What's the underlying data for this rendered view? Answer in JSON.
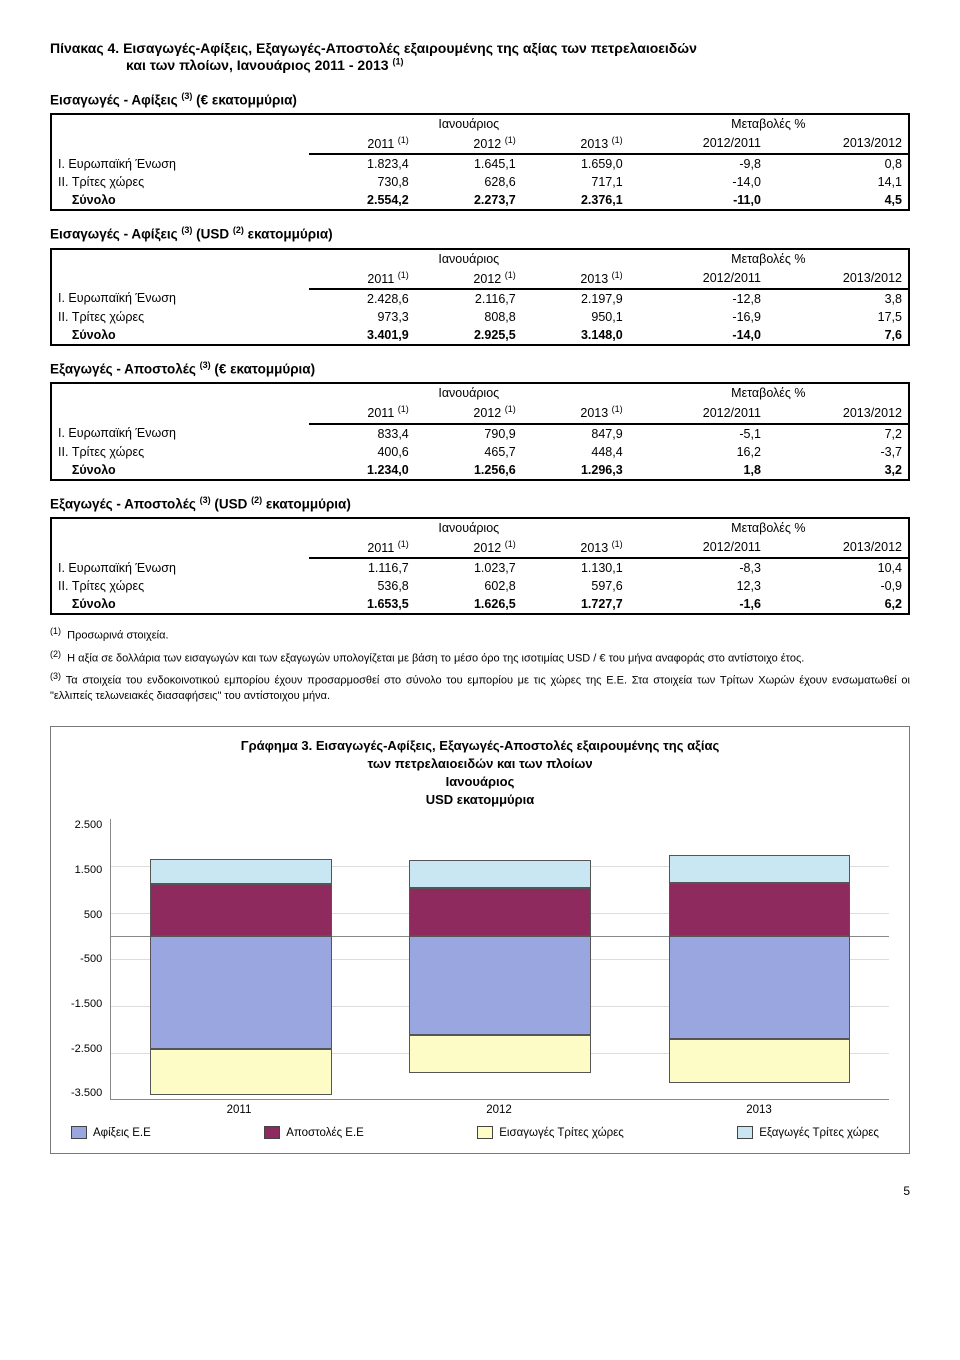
{
  "table_title_prefix": "Πίνακας 4.",
  "table_title_line1": " Εισαγωγές-Αφίξεις, Εξαγωγές-Αποστολές εξαιρουμένης της αξίας των πετρελαιοειδών",
  "table_title_line2": "και των πλοίων, Ιανουάριος 2011 - 2013 ",
  "fn1": "(1)",
  "fn2": "(2)",
  "fn3": "(3)",
  "hdr_ian": "Ιανουάριος",
  "hdr_met": "Μεταβολές %",
  "col_2011": "2011 ",
  "col_2012": "2012 ",
  "col_2013": "2013 ",
  "col_1211": "2012/2011",
  "col_1312": "2013/2012",
  "row_eu": "I. Ευρωπαϊκή Ένωση",
  "row_tr": "II. Τρίτες χώρες",
  "row_syn": "Σύνολο",
  "tables": [
    {
      "subtitle": "Εισαγωγές - Αφίξεις ",
      "suffix": " (€ εκατομμύρια)",
      "rows": [
        [
          "1.823,4",
          "1.645,1",
          "1.659,0",
          "-9,8",
          "0,8"
        ],
        [
          "730,8",
          "628,6",
          "717,1",
          "-14,0",
          "14,1"
        ],
        [
          "2.554,2",
          "2.273,7",
          "2.376,1",
          "-11,0",
          "4,5"
        ]
      ]
    },
    {
      "subtitle": "Εισαγωγές - Αφίξεις ",
      "suffix": " (USD ",
      "suffix2": " εκατομμύρια)",
      "rows": [
        [
          "2.428,6",
          "2.116,7",
          "2.197,9",
          "-12,8",
          "3,8"
        ],
        [
          "973,3",
          "808,8",
          "950,1",
          "-16,9",
          "17,5"
        ],
        [
          "3.401,9",
          "2.925,5",
          "3.148,0",
          "-14,0",
          "7,6"
        ]
      ]
    },
    {
      "subtitle": "Εξαγωγές - Αποστολές ",
      "suffix": " (€ εκατομμύρια)",
      "rows": [
        [
          "833,4",
          "790,9",
          "847,9",
          "-5,1",
          "7,2"
        ],
        [
          "400,6",
          "465,7",
          "448,4",
          "16,2",
          "-3,7"
        ],
        [
          "1.234,0",
          "1.256,6",
          "1.296,3",
          "1,8",
          "3,2"
        ]
      ]
    },
    {
      "subtitle": "Εξαγωγές - Αποστολές ",
      "suffix": "  (USD ",
      "suffix2": " εκατομμύρια)",
      "rows": [
        [
          "1.116,7",
          "1.023,7",
          "1.130,1",
          "-8,3",
          "10,4"
        ],
        [
          "536,8",
          "602,8",
          "597,6",
          "12,3",
          "-0,9"
        ],
        [
          "1.653,5",
          "1.626,5",
          "1.727,7",
          "-1,6",
          "6,2"
        ]
      ]
    }
  ],
  "footnotes": {
    "f1": "Προσωρινά στοιχεία.",
    "f2": "Η αξία σε δολλάρια των εισαγωγών και των εξαγωγών υπολογίζεται με βάση το μέσο όρο της ισοτιμίας USD / € του μήνα αναφοράς στο αντίστοιχο έτος.",
    "f3": "Τα στοιχεία του ενδοκοινοτικού εμπορίου έχουν προσαρμοσθεί στο σύνολο του εμπορίου με τις χώρες της Ε.Ε. Στα στοιχεία των Τρίτων Χωρών έχουν ενσωματωθεί οι \"ελλιπείς τελωνειακές διασαφήσεις\" του αντίστοιχου μήνα."
  },
  "chart": {
    "title_l1": "Γράφημα 3. Εισαγωγές-Αφίξεις,  Εξαγωγές-Αποστολές εξαιρουμένης της αξίας",
    "title_l2": "των πετρελαιοειδών και  των πλοίων",
    "title_l3": "Ιανουάριος",
    "title_l4": "USD εκατομμύρια",
    "ymin": -3500,
    "ymax": 2500,
    "step": 1000,
    "yticks": [
      "2.500",
      "1.500",
      "500",
      "-500",
      "-1.500",
      "-2.500",
      "-3.500"
    ],
    "years": [
      "2011",
      "2012",
      "2013"
    ],
    "series": [
      {
        "name": "Αφίξεις Ε.Ε",
        "color": "#9aa6e0",
        "values": [
          -2428.6,
          -2116.7,
          -2197.9
        ]
      },
      {
        "name": "Αποστολές  Ε.Ε",
        "color": "#8f2a5f",
        "values": [
          1116.7,
          1023.7,
          1130.1
        ]
      },
      {
        "name": "Εισαγωγές Τρίτες χώρες",
        "color": "#fdfcc7",
        "values": [
          -973.3,
          -808.8,
          -950.1
        ]
      },
      {
        "name": "Εξαγωγές Τρίτες χώρες",
        "color": "#c9e7f2",
        "values": [
          536.8,
          602.8,
          597.6
        ]
      }
    ]
  },
  "page_num": "5"
}
